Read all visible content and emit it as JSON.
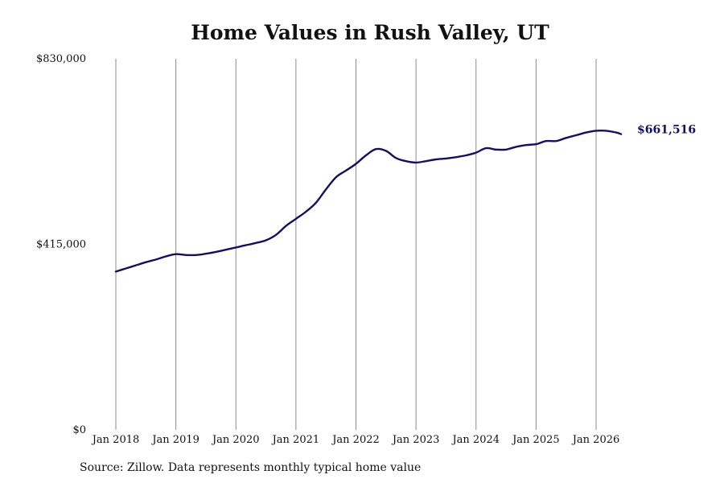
{
  "chart_data": {
    "type": "line",
    "title": "Home Values in Rush Valley, UT",
    "source": "Source: Zillow. Data represents monthly typical home value",
    "xlabel": "",
    "ylabel": "",
    "ylim": [
      0,
      830000
    ],
    "yticks": [
      0,
      415000,
      830000
    ],
    "ytick_labels": [
      "$0",
      "$415,000",
      "$830,000"
    ],
    "xticks": [
      "Jan 2018",
      "Jan 2019",
      "Jan 2020",
      "Jan 2021",
      "Jan 2022",
      "Jan 2023",
      "Jan 2024",
      "Jan 2025",
      "Jan 2026"
    ],
    "grid": "vertical",
    "line_color": "#11115e",
    "end_label": "$661,516",
    "series": [
      {
        "points": [
          [
            "2018-01",
            354000
          ],
          [
            "2018-03",
            361000
          ],
          [
            "2018-05",
            368000
          ],
          [
            "2018-07",
            375000
          ],
          [
            "2018-09",
            381000
          ],
          [
            "2018-11",
            388000
          ],
          [
            "2019-01",
            393000
          ],
          [
            "2019-03",
            391000
          ],
          [
            "2019-05",
            391000
          ],
          [
            "2019-07",
            394000
          ],
          [
            "2019-09",
            398000
          ],
          [
            "2019-11",
            403000
          ],
          [
            "2020-01",
            408000
          ],
          [
            "2020-03",
            413000
          ],
          [
            "2020-05",
            418000
          ],
          [
            "2020-07",
            424000
          ],
          [
            "2020-09",
            436000
          ],
          [
            "2020-11",
            456000
          ],
          [
            "2021-01",
            472000
          ],
          [
            "2021-03",
            488000
          ],
          [
            "2021-05",
            508000
          ],
          [
            "2021-07",
            538000
          ],
          [
            "2021-09",
            565000
          ],
          [
            "2021-11",
            580000
          ],
          [
            "2022-01",
            595000
          ],
          [
            "2022-03",
            614000
          ],
          [
            "2022-05",
            628000
          ],
          [
            "2022-07",
            624000
          ],
          [
            "2022-09",
            608000
          ],
          [
            "2022-11",
            601000
          ],
          [
            "2023-01",
            598000
          ],
          [
            "2023-03",
            601000
          ],
          [
            "2023-05",
            605000
          ],
          [
            "2023-07",
            607000
          ],
          [
            "2023-09",
            610000
          ],
          [
            "2023-11",
            614000
          ],
          [
            "2024-01",
            620000
          ],
          [
            "2024-03",
            630000
          ],
          [
            "2024-05",
            627000
          ],
          [
            "2024-07",
            627000
          ],
          [
            "2024-09",
            633000
          ],
          [
            "2024-11",
            637000
          ],
          [
            "2025-01",
            639000
          ],
          [
            "2025-03",
            646000
          ],
          [
            "2025-05",
            646000
          ],
          [
            "2025-07",
            653000
          ],
          [
            "2025-09",
            659000
          ],
          [
            "2025-11",
            665000
          ],
          [
            "2026-01",
            669000
          ],
          [
            "2026-03",
            669000
          ],
          [
            "2026-05",
            665000
          ],
          [
            "2026-06",
            661516
          ]
        ]
      }
    ]
  }
}
